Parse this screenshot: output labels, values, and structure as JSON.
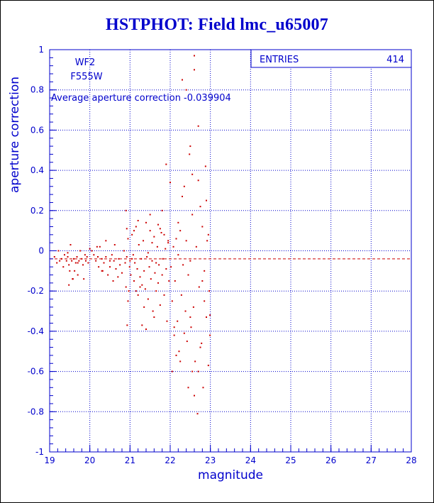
{
  "title": "HSTPHOT: Field lmc_u65007",
  "stats_box": {
    "label": "ENTRIES",
    "value": "414"
  },
  "annotations": {
    "camera": "WF2",
    "filter": "F555W",
    "average": "Average aperture correction -0.039904"
  },
  "colors": {
    "text": "#0000cc",
    "grid": "#0000cc",
    "points": "#cc0000",
    "reference_line": "#cc0000"
  },
  "chart_data": {
    "type": "scatter",
    "title": "HSTPHOT: Field lmc_u65007",
    "xlabel": "magnitude",
    "ylabel": "aperture correction",
    "xlim": [
      19,
      28
    ],
    "ylim": [
      -1,
      1
    ],
    "x_ticks": [
      19,
      20,
      21,
      22,
      23,
      24,
      25,
      26,
      27,
      28
    ],
    "y_ticks": [
      -1,
      -0.8,
      -0.6,
      -0.4,
      -0.2,
      0,
      0.2,
      0.4,
      0.6,
      0.8,
      1
    ],
    "grid": true,
    "reference_line": {
      "y": -0.039904,
      "style": "dashed"
    },
    "entries": 414,
    "points": [
      [
        19.12,
        -0.03
      ],
      [
        19.18,
        -0.06
      ],
      [
        19.22,
        0.0
      ],
      [
        19.25,
        -0.05
      ],
      [
        19.3,
        -0.04
      ],
      [
        19.34,
        -0.08
      ],
      [
        19.37,
        -0.02
      ],
      [
        19.42,
        -0.05
      ],
      [
        19.45,
        -0.03
      ],
      [
        19.48,
        -0.07
      ],
      [
        19.5,
        -0.1
      ],
      [
        19.52,
        0.03
      ],
      [
        19.55,
        -0.05
      ],
      [
        19.57,
        -0.14
      ],
      [
        19.6,
        -0.04
      ],
      [
        19.62,
        -0.1
      ],
      [
        19.65,
        -0.06
      ],
      [
        19.68,
        -0.03
      ],
      [
        19.7,
        -0.12
      ],
      [
        19.73,
        -0.05
      ],
      [
        19.76,
        0.0
      ],
      [
        19.8,
        -0.04
      ],
      [
        19.83,
        -0.07
      ],
      [
        19.85,
        -0.14
      ],
      [
        19.88,
        -0.02
      ],
      [
        19.9,
        -0.05
      ],
      [
        19.93,
        -0.03
      ],
      [
        19.96,
        -0.06
      ],
      [
        19.48,
        -0.17
      ],
      [
        19.58,
        -0.14
      ],
      [
        19.45,
        -0.01
      ],
      [
        19.7,
        -0.06
      ],
      [
        20.0,
        0.01
      ],
      [
        20.05,
        0.0
      ],
      [
        20.1,
        -0.02
      ],
      [
        20.15,
        -0.05
      ],
      [
        20.2,
        -0.03
      ],
      [
        20.22,
        -0.08
      ],
      [
        20.25,
        0.02
      ],
      [
        20.3,
        -0.04
      ],
      [
        20.32,
        -0.1
      ],
      [
        20.35,
        -0.06
      ],
      [
        20.4,
        -0.03
      ],
      [
        20.45,
        -0.12
      ],
      [
        20.5,
        -0.08
      ],
      [
        20.55,
        -0.02
      ],
      [
        20.58,
        -0.15
      ],
      [
        20.6,
        -0.05
      ],
      [
        20.65,
        -0.09
      ],
      [
        20.7,
        -0.13
      ],
      [
        20.72,
        -0.04
      ],
      [
        20.75,
        -0.07
      ],
      [
        20.8,
        -0.11
      ],
      [
        20.85,
        0.0
      ],
      [
        20.88,
        -0.06
      ],
      [
        20.9,
        -0.18
      ],
      [
        20.92,
        -0.03
      ],
      [
        20.95,
        0.06
      ],
      [
        20.97,
        -0.2
      ],
      [
        20.62,
        0.03
      ],
      [
        20.4,
        0.05
      ],
      [
        20.18,
        0.02
      ],
      [
        20.3,
        -0.1
      ],
      [
        20.5,
        -0.05
      ],
      [
        20.9,
        0.2
      ],
      [
        20.92,
        0.11
      ],
      [
        20.95,
        -0.25
      ],
      [
        20.93,
        -0.37
      ],
      [
        20.99,
        -0.08
      ],
      [
        21.0,
        -0.05
      ],
      [
        21.02,
        -0.12
      ],
      [
        21.05,
        0.08
      ],
      [
        21.08,
        -0.02
      ],
      [
        21.1,
        -0.15
      ],
      [
        21.12,
        -0.06
      ],
      [
        21.15,
        0.12
      ],
      [
        21.18,
        -0.09
      ],
      [
        21.2,
        -0.22
      ],
      [
        21.22,
        0.03
      ],
      [
        21.25,
        -0.13
      ],
      [
        21.28,
        -0.04
      ],
      [
        21.3,
        -0.17
      ],
      [
        21.33,
        0.05
      ],
      [
        21.35,
        -0.1
      ],
      [
        21.38,
        -0.19
      ],
      [
        21.4,
        0.14
      ],
      [
        21.42,
        -0.03
      ],
      [
        21.45,
        -0.24
      ],
      [
        21.48,
        -0.08
      ],
      [
        21.5,
        0.1
      ],
      [
        21.52,
        -0.14
      ],
      [
        21.55,
        -0.05
      ],
      [
        21.57,
        -0.3
      ],
      [
        21.6,
        0.07
      ],
      [
        21.62,
        -0.11
      ],
      [
        21.65,
        -0.2
      ],
      [
        21.68,
        0.02
      ],
      [
        21.7,
        -0.16
      ],
      [
        21.72,
        -0.07
      ],
      [
        21.75,
        -0.27
      ],
      [
        21.78,
        0.09
      ],
      [
        21.8,
        -0.12
      ],
      [
        21.82,
        -0.04
      ],
      [
        21.85,
        -0.22
      ],
      [
        21.88,
        0.01
      ],
      [
        21.9,
        -0.09
      ],
      [
        21.92,
        -0.35
      ],
      [
        21.95,
        0.05
      ],
      [
        21.97,
        -0.15
      ],
      [
        21.6,
        -0.33
      ],
      [
        21.4,
        -0.39
      ],
      [
        21.3,
        -0.37
      ],
      [
        21.1,
        0.1
      ],
      [
        21.2,
        0.15
      ],
      [
        21.5,
        0.18
      ],
      [
        21.7,
        0.13
      ],
      [
        21.8,
        0.2
      ],
      [
        21.9,
        0.43
      ],
      [
        21.95,
        0.04
      ],
      [
        21.15,
        -0.2
      ],
      [
        21.25,
        -0.18
      ],
      [
        21.35,
        -0.28
      ],
      [
        21.45,
        -0.01
      ],
      [
        21.55,
        0.04
      ],
      [
        21.65,
        -0.06
      ],
      [
        21.75,
        0.11
      ],
      [
        21.85,
        0.08
      ],
      [
        21.05,
        -0.04
      ],
      [
        22.0,
        0.34
      ],
      [
        22.02,
        -0.08
      ],
      [
        22.05,
        -0.25
      ],
      [
        22.08,
        0.02
      ],
      [
        22.1,
        -0.42
      ],
      [
        22.12,
        -0.15
      ],
      [
        22.15,
        0.06
      ],
      [
        22.18,
        -0.35
      ],
      [
        22.2,
        -0.02
      ],
      [
        22.22,
        -0.5
      ],
      [
        22.25,
        0.1
      ],
      [
        22.28,
        -0.22
      ],
      [
        22.3,
        0.85
      ],
      [
        22.32,
        -0.07
      ],
      [
        22.35,
        0.32
      ],
      [
        22.38,
        -0.3
      ],
      [
        22.4,
        0.05
      ],
      [
        22.42,
        -0.45
      ],
      [
        22.45,
        -0.12
      ],
      [
        22.48,
        0.48
      ],
      [
        22.5,
        -0.05
      ],
      [
        22.52,
        -0.38
      ],
      [
        22.55,
        0.18
      ],
      [
        22.58,
        -0.28
      ],
      [
        22.6,
        0.9
      ],
      [
        22.62,
        -0.55
      ],
      [
        22.65,
        0.02
      ],
      [
        22.68,
        -0.81
      ],
      [
        22.7,
        0.62
      ],
      [
        22.72,
        -0.18
      ],
      [
        22.75,
        0.22
      ],
      [
        22.78,
        -0.46
      ],
      [
        22.8,
        0.12
      ],
      [
        22.82,
        -0.68
      ],
      [
        22.85,
        -0.1
      ],
      [
        22.88,
        0.42
      ],
      [
        22.9,
        -0.33
      ],
      [
        22.92,
        0.05
      ],
      [
        22.95,
        -0.57
      ],
      [
        22.97,
        -0.2
      ],
      [
        22.99,
        -0.32
      ],
      [
        22.4,
        0.8
      ],
      [
        22.5,
        0.52
      ],
      [
        22.55,
        0.38
      ],
      [
        22.7,
        0.35
      ],
      [
        22.3,
        0.27
      ],
      [
        22.2,
        0.14
      ],
      [
        22.1,
        -0.38
      ],
      [
        22.6,
        -0.72
      ],
      [
        22.7,
        -0.6
      ],
      [
        22.75,
        -0.48
      ],
      [
        22.85,
        -0.25
      ],
      [
        22.9,
        0.25
      ],
      [
        22.6,
        0.97
      ],
      [
        22.45,
        -0.68
      ],
      [
        22.25,
        -0.55
      ],
      [
        22.15,
        -0.52
      ],
      [
        22.05,
        -0.6
      ],
      [
        22.35,
        -0.41
      ],
      [
        22.55,
        -0.6
      ],
      [
        22.8,
        -0.15
      ],
      [
        22.95,
        0.08
      ],
      [
        22.99,
        -0.42
      ],
      [
        22.5,
        -0.33
      ]
    ]
  }
}
